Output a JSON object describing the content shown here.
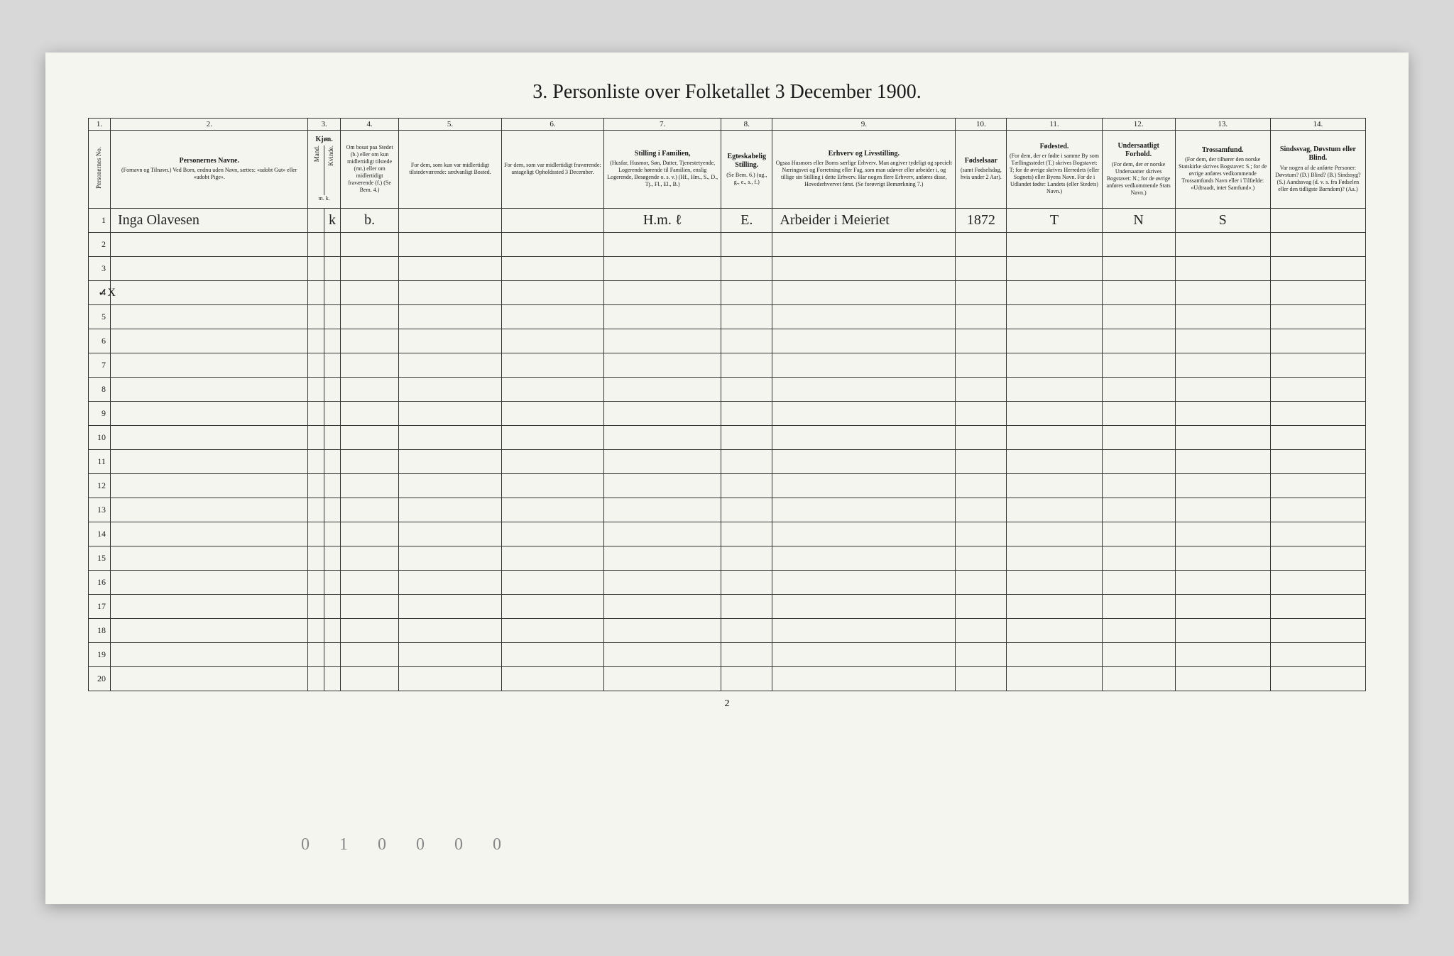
{
  "title": "3. Personliste over Folketallet 3 December 1900.",
  "page_num": "2",
  "pencil_marks": "0 1  0 0  0 0",
  "margin_mark": "✓X",
  "columns": {
    "nums": [
      "1.",
      "2.",
      "3.",
      "4.",
      "5.",
      "6.",
      "7.",
      "8.",
      "9.",
      "10.",
      "11.",
      "12.",
      "13.",
      "14."
    ],
    "c1": {
      "title": "Personernes No.",
      "sub": ""
    },
    "c2": {
      "title": "Personernes Navne.",
      "sub": "(Fornavn og Tilnavn.)\nVed Born, endnu uden Navn, sættes: «udobt Gut» eller «udobt Pige»."
    },
    "c3": {
      "title": "Kjøn.",
      "sub_m": "Mand.",
      "sub_k": "Kvinde.",
      "foot": "m. k."
    },
    "c4": {
      "title": "",
      "sub": "Om bosat paa Stedet (b.) eller om kun midlertidigt tilstede (mt.) eller om midlertidigt fraværende (f.) (Se Bem. 4.)"
    },
    "c5": {
      "title": "",
      "sub": "For dem, som kun var midlertidigt tilstedeværende:\nsædvanligt Bosted."
    },
    "c6": {
      "title": "",
      "sub": "For dem, som var midlertidigt fraværende:\nantageligt Opholdssted 3 December."
    },
    "c7": {
      "title": "Stilling i Familien,",
      "sub": "(Husfar, Husmor, Søn, Datter, Tjenestetyende, Logerende hørende til Familien, enslig Logerende, Besøgende o. s. v.)\n(Hf., Hm., S., D., Tj., Fl., El., B.)"
    },
    "c8": {
      "title": "Egteskabelig Stilling.",
      "sub": "(Se Bem. 6.)\n(ug., g., e., s., f.)"
    },
    "c9": {
      "title": "Erhverv og Livsstilling.",
      "sub": "Ogsaa Husmors eller Borns særlige Erhverv. Man angiver tydeligt og specielt Næringsvei og Forretning eller Fag, som man udøver eller arbeider i, og tillige sin Stilling i dette Erhverv. Har nogen flere Erhverv, anføres disse, Hovederhvervet først.\n(Se forøvrigt Bemærkning 7.)"
    },
    "c10": {
      "title": "Fødselsaar",
      "sub": "(samt Fødselsdag, hvis under 2 Aar)."
    },
    "c11": {
      "title": "Fødested.",
      "sub": "(For dem, der er fødte i samme By som Tællingsstedet (T.) skrives Bogstavet: T; for de øvrige skrives Herredets (eller Sognets) eller Byens Navn. For de i Udlandet fødte: Landets (eller Stedets) Navn.)"
    },
    "c12": {
      "title": "Undersaatligt Forhold.",
      "sub": "(For dem, der er norske Undersaatter skrives Bogstavet: N.; for de øvrige anføres vedkommende Stats Navn.)"
    },
    "c13": {
      "title": "Trossamfund.",
      "sub": "(For dem, der tilhører den norske Statskirke skrives Bogstavet: S.; for de øvrige anføres vedkommende Trossamfunds Navn eller i Tilfælde: «Udtraadt, intet Samfund».)"
    },
    "c14": {
      "title": "Sindssvag, Døvstum eller Blind.",
      "sub": "Var nogen af de anførte Personer:\nDøvstum? (D.)\nBlind? (B.)\nSindssyg? (S.)\nAandssvag (d. v. s. fra Fødselen eller den tidligste Barndom)? (Aa.)"
    }
  },
  "col_widths": {
    "c1": "30",
    "c2": "270",
    "c3m": "22",
    "c3k": "22",
    "c4": "80",
    "c5": "140",
    "c6": "140",
    "c7": "160",
    "c8": "70",
    "c9": "250",
    "c10": "70",
    "c11": "130",
    "c12": "100",
    "c13": "130",
    "c14": "130"
  },
  "row_count": 20,
  "rows": [
    {
      "n": "1",
      "name": "Inga Olavesen",
      "sex_m": "",
      "sex_k": "k",
      "resident": "b.",
      "c5": "",
      "c6": "",
      "family_pos": "H.m. ℓ",
      "marital": "E.",
      "occupation": "Arbeider i Meieriet",
      "birth_year": "1872",
      "birthplace": "T",
      "subject": "N",
      "religion": "S",
      "disability": ""
    }
  ],
  "colors": {
    "paper": "#f5f5f0",
    "ink": "#1a1a1a",
    "border": "#333333",
    "bg": "#d8d8d8",
    "pencil": "#888888"
  }
}
